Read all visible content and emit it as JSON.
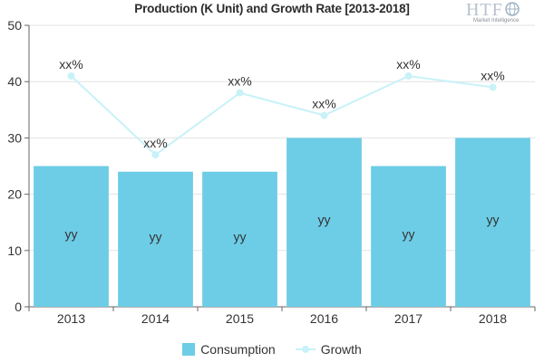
{
  "chart_data": {
    "type": "bar",
    "title": "Production (K Unit) and Growth Rate [2013-2018]",
    "categories": [
      "2013",
      "2014",
      "2015",
      "2016",
      "2017",
      "2018"
    ],
    "ylim": [
      0,
      50
    ],
    "yticks": [
      0,
      10,
      20,
      30,
      40,
      50
    ],
    "grid": true,
    "legend_position": "bottom",
    "series": [
      {
        "name": "Consumption",
        "type": "bar",
        "color": "#6dcde6",
        "values": [
          25,
          24,
          24,
          30,
          25,
          30
        ],
        "data_labels": [
          "yy",
          "yy",
          "yy",
          "yy",
          "yy",
          "yy"
        ]
      },
      {
        "name": "Growth",
        "type": "line",
        "color": "#c8f2f7",
        "values": [
          41,
          27,
          38,
          34,
          41,
          39
        ],
        "data_labels": [
          "xx%",
          "xx%",
          "xx%",
          "xx%",
          "xx%",
          "xx%"
        ]
      }
    ]
  },
  "logo": {
    "text": "HTF",
    "subtext": "Market Intelligence"
  }
}
